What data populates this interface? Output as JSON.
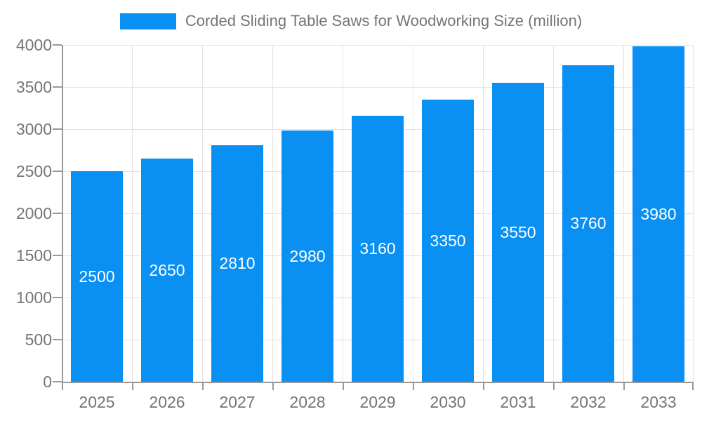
{
  "chart_data": {
    "type": "bar",
    "title": "Corded Sliding Table Saws for Woodworking Size (million)",
    "categories": [
      "2025",
      "2026",
      "2027",
      "2028",
      "2029",
      "2030",
      "2031",
      "2032",
      "2033"
    ],
    "values": [
      2500,
      2650,
      2810,
      2980,
      3160,
      3350,
      3550,
      3760,
      3980
    ],
    "xlabel": "",
    "ylabel": "",
    "ylim": [
      0,
      4000
    ],
    "yticks": [
      0,
      500,
      1000,
      1500,
      2000,
      2500,
      3000,
      3500,
      4000
    ],
    "grid": "on",
    "legend_position": "top-center",
    "colors": {
      "bar": "#0a8ff2",
      "bar_label_text": "#ffffff",
      "grid": "#e3e3e3",
      "axis": "#999999",
      "tick_text": "#757575",
      "background": "#ffffff"
    }
  }
}
